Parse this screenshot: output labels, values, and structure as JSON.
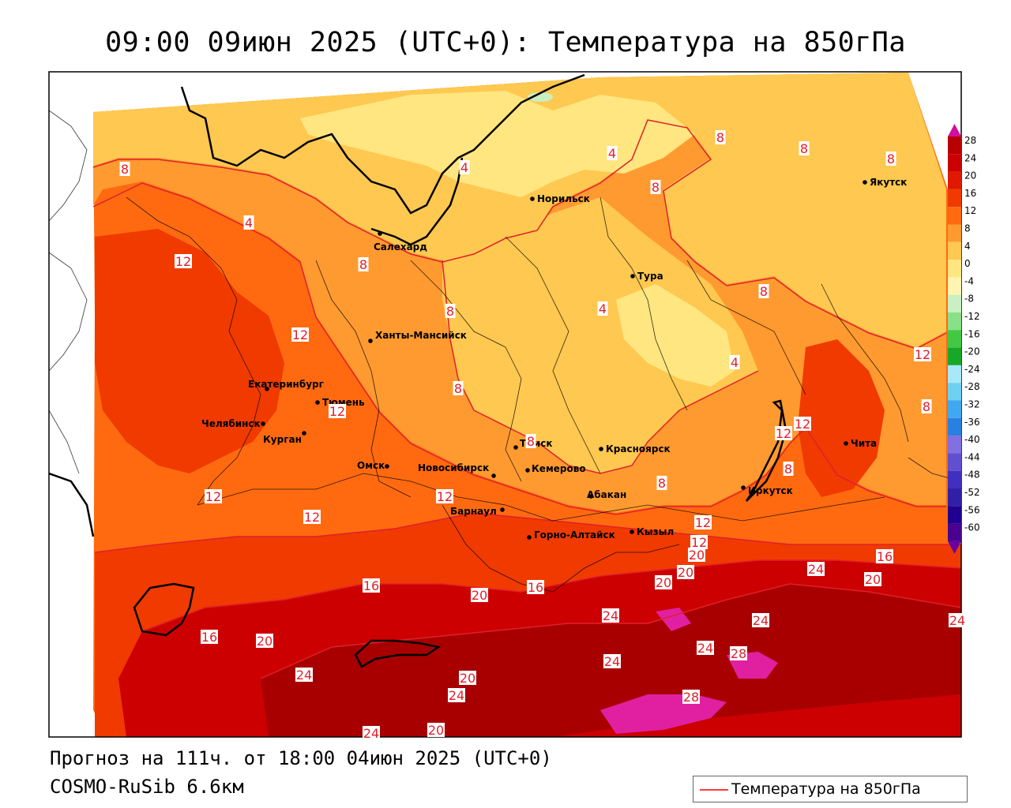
{
  "title": "09:00 09июн 2025 (UTC+0): Температура на 850гПа",
  "footer": {
    "forecast": "Прогноз на 111ч. от 18:00 04июн 2025 (UTC+0)",
    "model": "COSMO-RuSib 6.6км"
  },
  "legend": {
    "label": "Температура на 850гПа",
    "line_color": "#ff3b3b"
  },
  "colorbar": {
    "labels": [
      "28",
      "24",
      "20",
      "16",
      "12",
      "8",
      "4",
      "0",
      "-4",
      "-8",
      "-12",
      "-16",
      "-20",
      "-24",
      "-28",
      "-32",
      "-36",
      "-40",
      "-44",
      "-48",
      "-52",
      "-56",
      "-60"
    ],
    "colors": [
      "#b80000",
      "#cc0000",
      "#e01800",
      "#f03a00",
      "#ff6a10",
      "#ff9a30",
      "#ffc850",
      "#ffe680",
      "#fff4b0",
      "#c8f0c0",
      "#88e088",
      "#44c844",
      "#18a828",
      "#a8e8f8",
      "#70d0f0",
      "#40a8f0",
      "#2880e0",
      "#8070e0",
      "#6050d0",
      "#4030c0",
      "#3020a8",
      "#200090",
      "#4a0090"
    ]
  },
  "cities": [
    {
      "name": "Норильск"
    },
    {
      "name": "Якутск"
    },
    {
      "name": "Салехард"
    },
    {
      "name": "Тура"
    },
    {
      "name": "Ханты-Мансийск"
    },
    {
      "name": "Екатеринбург"
    },
    {
      "name": "Тюмень"
    },
    {
      "name": "Челябинск"
    },
    {
      "name": "Курган"
    },
    {
      "name": "Омск"
    },
    {
      "name": "Новосибирск"
    },
    {
      "name": "Томск"
    },
    {
      "name": "Кемерово"
    },
    {
      "name": "Красноярск"
    },
    {
      "name": "Барнаул"
    },
    {
      "name": "Абакан"
    },
    {
      "name": "Иркутск"
    },
    {
      "name": "Чита"
    },
    {
      "name": "Горно-Алтайск"
    },
    {
      "name": "Кызыл"
    }
  ],
  "isotherm_labels": [
    "8",
    "4",
    "4",
    "4",
    "8",
    "8",
    "8",
    "8",
    "12",
    "8",
    "8",
    "12",
    "4",
    "8",
    "12",
    "4",
    "8",
    "12",
    "8",
    "8",
    "8",
    "12",
    "12",
    "12",
    "12",
    "8",
    "12",
    "12",
    "12",
    "16",
    "16",
    "20",
    "20",
    "16",
    "20",
    "24",
    "20",
    "24",
    "24",
    "24",
    "28",
    "16",
    "20",
    "24",
    "20",
    "24",
    "28",
    "24",
    "20",
    "24",
    "24",
    "20"
  ],
  "isotherm_color": "#e0202a"
}
